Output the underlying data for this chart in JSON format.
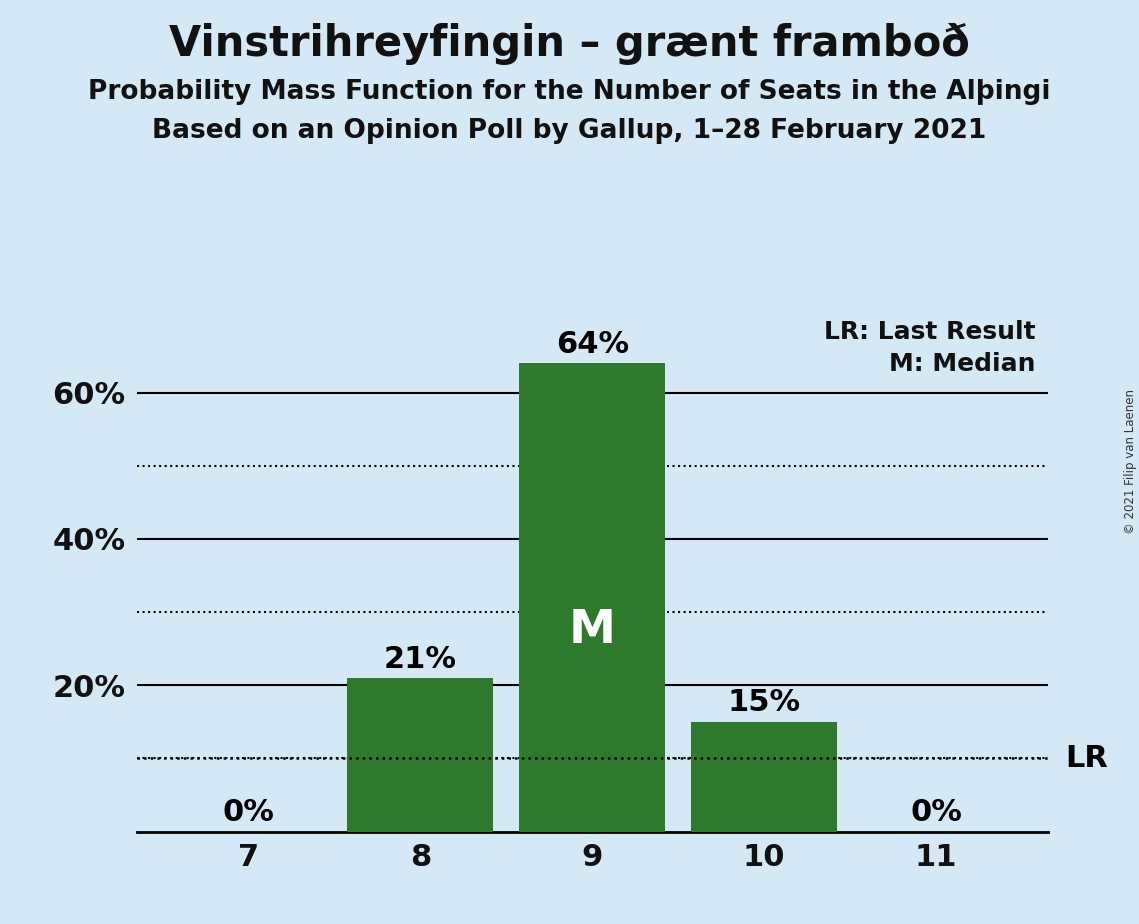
{
  "title": "Vinstrihreyfingin – grænt framboð",
  "subtitle1": "Probability Mass Function for the Number of Seats in the Alþingi",
  "subtitle2": "Based on an Opinion Poll by Gallup, 1–28 February 2021",
  "copyright": "© 2021 Filip van Laenen",
  "seats": [
    7,
    8,
    9,
    10,
    11
  ],
  "probabilities": [
    0.0,
    0.21,
    0.64,
    0.15,
    0.0
  ],
  "bar_color": "#2d7a2d",
  "background_color": "#d5e8f5",
  "median_seat": 9,
  "last_result_value": 0.1,
  "last_result_label": "LR",
  "median_label": "M",
  "ylim": [
    0,
    0.72
  ],
  "ytick_positions": [
    0.2,
    0.4,
    0.6
  ],
  "ytick_labels": [
    "20%",
    "40%",
    "60%"
  ],
  "solid_lines": [
    0.2,
    0.4,
    0.6
  ],
  "dotted_lines": [
    0.1,
    0.3,
    0.5
  ],
  "bar_width": 0.85,
  "title_fontsize": 30,
  "subtitle_fontsize": 19,
  "annotation_fontsize": 22,
  "axis_fontsize": 22,
  "legend_fontsize": 18,
  "median_fontsize": 34,
  "lr_fontsize": 22
}
